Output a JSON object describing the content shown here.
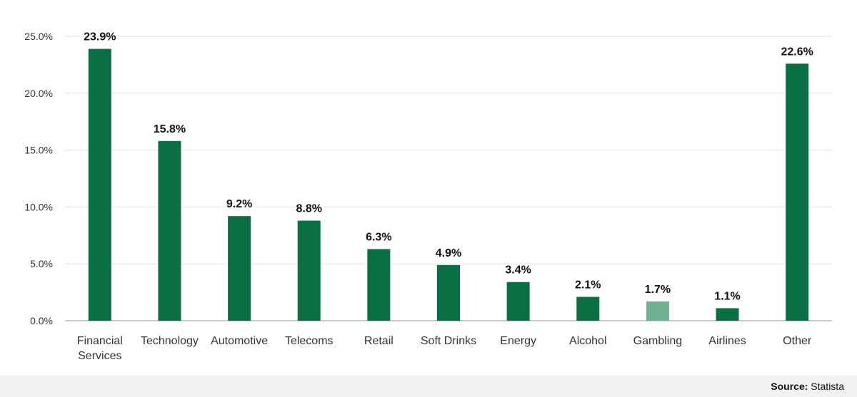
{
  "chart_data": {
    "type": "bar",
    "title": "",
    "xlabel": "",
    "ylabel": "",
    "categories": [
      [
        "Financial",
        "Services"
      ],
      [
        "Technology"
      ],
      [
        "Automotive"
      ],
      [
        "Telecoms"
      ],
      [
        "Retail"
      ],
      [
        "Soft Drinks"
      ],
      [
        "Energy"
      ],
      [
        "Alcohol"
      ],
      [
        "Gambling"
      ],
      [
        "Airlines"
      ],
      [
        "Other"
      ]
    ],
    "values": [
      23.9,
      15.8,
      9.2,
      8.8,
      6.3,
      4.9,
      3.4,
      2.1,
      1.7,
      1.1,
      22.6
    ],
    "data_labels": [
      "23.9%",
      "15.8%",
      "9.2%",
      "8.8%",
      "6.3%",
      "4.9%",
      "3.4%",
      "2.1%",
      "1.7%",
      "1.1%",
      "22.6%"
    ],
    "highlighted_index": 8,
    "ylim": [
      0,
      25
    ],
    "yticks": [
      0,
      5,
      10,
      15,
      20,
      25
    ],
    "ytick_labels": [
      "0.0%",
      "5.0%",
      "10.0%",
      "15.0%",
      "20.0%",
      "25.0%"
    ],
    "grid": true,
    "colors": {
      "bar": "#0a7043",
      "bar_highlight": "#6fb08e",
      "grid": "#e6e6e6",
      "axis": "#9a9a9a",
      "tick_text": "#333333",
      "label_text": "#111111"
    }
  },
  "footer": {
    "source_label": "Source:",
    "source_value": " Statista"
  }
}
